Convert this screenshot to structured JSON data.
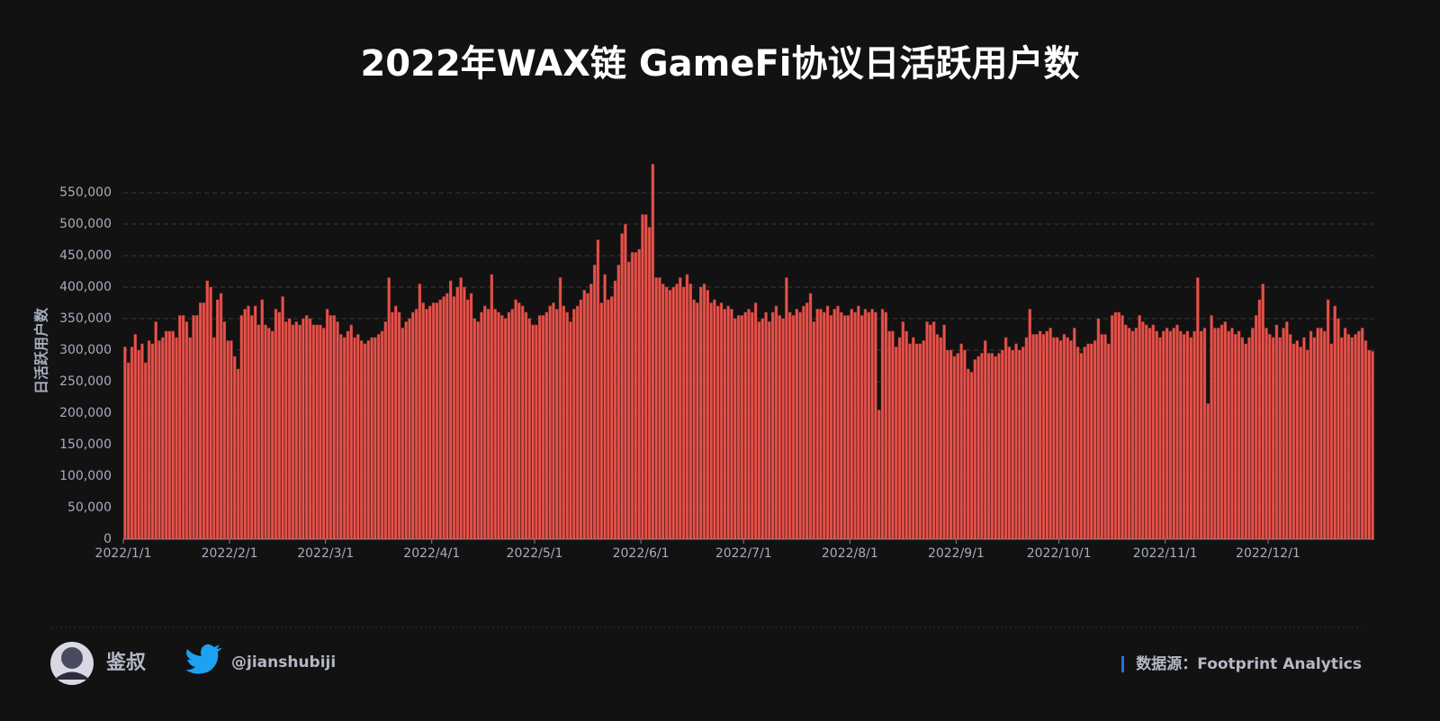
{
  "chart_data": {
    "type": "bar",
    "title": "2022年WAX链 GameFi协议日活跃用户数",
    "y_label": "日活跃用户数",
    "color": "#e5534b",
    "ylim": [
      0,
      600000
    ],
    "yticks": [
      0,
      {
        "value": 50000,
        "label": "50,000"
      },
      {
        "value": 100000,
        "label": "100,000"
      },
      {
        "value": 150000,
        "label": "150,000"
      },
      {
        "value": 200000,
        "label": "200,000"
      },
      {
        "value": 250000,
        "label": "250,000"
      },
      {
        "value": 300000,
        "label": "300,000"
      },
      {
        "value": 350000,
        "label": "350,000"
      },
      {
        "value": 400000,
        "label": "400,000"
      },
      {
        "value": 450000,
        "label": "450,000"
      },
      {
        "value": 500000,
        "label": "500,000"
      },
      {
        "value": 550000,
        "label": "550,000"
      }
    ],
    "grid": true,
    "categories": [
      "2022/1/1",
      null,
      null,
      null,
      null,
      null,
      null,
      null,
      null,
      null,
      null,
      null,
      null,
      null,
      null,
      null,
      null,
      null,
      null,
      null,
      null,
      null,
      null,
      null,
      null,
      null,
      null,
      null,
      null,
      null,
      null,
      "2022/2/1",
      null,
      null,
      null,
      null,
      null,
      null,
      null,
      null,
      null,
      null,
      null,
      null,
      null,
      null,
      null,
      null,
      null,
      null,
      null,
      null,
      null,
      null,
      null,
      null,
      null,
      null,
      null,
      "2022/3/1",
      null,
      null,
      null,
      null,
      null,
      null,
      null,
      null,
      null,
      null,
      null,
      null,
      null,
      null,
      null,
      null,
      null,
      null,
      null,
      null,
      null,
      null,
      null,
      null,
      null,
      null,
      null,
      null,
      null,
      null,
      "2022/4/1",
      null,
      null,
      null,
      null,
      null,
      null,
      null,
      null,
      null,
      null,
      null,
      null,
      null,
      null,
      null,
      null,
      null,
      null,
      null,
      null,
      null,
      null,
      null,
      null,
      null,
      null,
      null,
      null,
      null,
      "2022/5/1",
      null,
      null,
      null,
      null,
      null,
      null,
      null,
      null,
      null,
      null,
      null,
      null,
      null,
      null,
      null,
      null,
      null,
      null,
      null,
      null,
      null,
      null,
      null,
      null,
      null,
      null,
      null,
      null,
      null,
      null,
      "2022/6/1",
      null,
      null,
      null,
      null,
      null,
      null,
      null,
      null,
      null,
      null,
      null,
      null,
      null,
      null,
      null,
      null,
      null,
      null,
      null,
      null,
      null,
      null,
      null,
      null,
      null,
      null,
      null,
      null,
      null,
      "2022/7/1",
      null,
      null,
      null,
      null,
      null,
      null,
      null,
      null,
      null,
      null,
      null,
      null,
      null,
      null,
      null,
      null,
      null,
      null,
      null,
      null,
      null,
      null,
      null,
      null,
      null,
      null,
      null,
      null,
      null,
      null,
      "2022/8/1",
      null,
      null,
      null,
      null,
      null,
      null,
      null,
      null,
      null,
      null,
      null,
      null,
      null,
      null,
      null,
      null,
      null,
      null,
      null,
      null,
      null,
      null,
      null,
      null,
      null,
      null,
      null,
      null,
      null,
      null,
      "2022/9/1",
      null,
      null,
      null,
      null,
      null,
      null,
      null,
      null,
      null,
      null,
      null,
      null,
      null,
      null,
      null,
      null,
      null,
      null,
      null,
      null,
      null,
      null,
      null,
      null,
      null,
      null,
      null,
      null,
      null,
      "2022/10/1",
      null,
      null,
      null,
      null,
      null,
      null,
      null,
      null,
      null,
      null,
      null,
      null,
      null,
      null,
      null,
      null,
      null,
      null,
      null,
      null,
      null,
      null,
      null,
      null,
      null,
      null,
      null,
      null,
      null,
      null,
      "2022/11/1",
      null,
      null,
      null,
      null,
      null,
      null,
      null,
      null,
      null,
      null,
      null,
      null,
      null,
      null,
      null,
      null,
      null,
      null,
      null,
      null,
      null,
      null,
      null,
      null,
      null,
      null,
      null,
      null,
      null,
      "2022/12/1",
      null,
      null,
      null,
      null,
      null,
      null,
      null,
      null,
      null,
      null,
      null,
      null,
      null,
      null,
      null,
      null,
      null,
      null,
      null,
      null,
      null,
      null,
      null,
      null,
      null,
      null,
      null,
      null,
      null,
      null
    ],
    "values": [
      305000,
      280000,
      305000,
      325000,
      300000,
      310000,
      280000,
      315000,
      310000,
      345000,
      315000,
      320000,
      330000,
      330000,
      330000,
      320000,
      355000,
      355000,
      345000,
      320000,
      355000,
      355000,
      375000,
      375000,
      410000,
      400000,
      320000,
      380000,
      390000,
      345000,
      315000,
      315000,
      290000,
      270000,
      355000,
      365000,
      370000,
      355000,
      370000,
      340000,
      380000,
      340000,
      335000,
      330000,
      365000,
      360000,
      385000,
      345000,
      350000,
      340000,
      345000,
      340000,
      350000,
      355000,
      350000,
      340000,
      340000,
      340000,
      335000,
      365000,
      355000,
      355000,
      345000,
      325000,
      320000,
      330000,
      340000,
      320000,
      325000,
      315000,
      310000,
      315000,
      320000,
      320000,
      325000,
      330000,
      345000,
      415000,
      360000,
      370000,
      360000,
      335000,
      345000,
      350000,
      360000,
      365000,
      405000,
      375000,
      365000,
      370000,
      375000,
      375000,
      380000,
      385000,
      390000,
      410000,
      385000,
      400000,
      415000,
      400000,
      380000,
      390000,
      350000,
      345000,
      360000,
      370000,
      365000,
      420000,
      365000,
      360000,
      355000,
      350000,
      360000,
      365000,
      380000,
      375000,
      370000,
      360000,
      350000,
      340000,
      340000,
      355000,
      355000,
      360000,
      370000,
      375000,
      365000,
      415000,
      370000,
      360000,
      345000,
      365000,
      370000,
      380000,
      395000,
      390000,
      405000,
      435000,
      475000,
      375000,
      420000,
      380000,
      385000,
      410000,
      435000,
      485000,
      500000,
      440000,
      455000,
      455000,
      460000,
      515000,
      515000,
      495000,
      595000,
      415000,
      415000,
      405000,
      400000,
      395000,
      400000,
      405000,
      415000,
      400000,
      420000,
      405000,
      380000,
      375000,
      400000,
      405000,
      395000,
      375000,
      380000,
      370000,
      375000,
      365000,
      370000,
      365000,
      350000,
      355000,
      355000,
      360000,
      365000,
      360000,
      375000,
      345000,
      350000,
      360000,
      345000,
      360000,
      370000,
      355000,
      350000,
      415000,
      360000,
      355000,
      365000,
      360000,
      370000,
      375000,
      390000,
      345000,
      365000,
      365000,
      360000,
      370000,
      355000,
      365000,
      370000,
      360000,
      355000,
      355000,
      365000,
      360000,
      370000,
      355000,
      365000,
      360000,
      365000,
      360000,
      205000,
      365000,
      360000,
      330000,
      330000,
      305000,
      320000,
      345000,
      330000,
      310000,
      320000,
      310000,
      310000,
      315000,
      345000,
      340000,
      345000,
      325000,
      320000,
      340000,
      300000,
      300000,
      290000,
      295000,
      310000,
      300000,
      270000,
      265000,
      285000,
      290000,
      295000,
      315000,
      295000,
      295000,
      290000,
      295000,
      300000,
      320000,
      305000,
      300000,
      310000,
      300000,
      305000,
      320000,
      365000,
      325000,
      325000,
      330000,
      325000,
      330000,
      335000,
      320000,
      320000,
      315000,
      325000,
      320000,
      315000,
      335000,
      305000,
      295000,
      305000,
      310000,
      310000,
      315000,
      350000,
      325000,
      325000,
      310000,
      355000,
      360000,
      360000,
      355000,
      340000,
      335000,
      330000,
      335000,
      355000,
      345000,
      340000,
      335000,
      340000,
      330000,
      320000,
      330000,
      335000,
      330000,
      335000,
      340000,
      330000,
      325000,
      330000,
      320000,
      330000,
      415000,
      330000,
      335000,
      215000,
      355000,
      335000,
      335000,
      340000,
      345000,
      330000,
      335000,
      325000,
      330000,
      320000,
      310000,
      320000,
      335000,
      355000,
      380000,
      405000,
      335000,
      325000,
      320000,
      340000,
      320000,
      335000,
      345000,
      325000,
      310000,
      315000,
      305000,
      320000,
      300000,
      330000,
      320000,
      335000,
      335000,
      330000,
      380000,
      310000,
      370000,
      350000,
      320000,
      335000,
      325000,
      320000,
      325000,
      330000,
      335000,
      315000,
      300000,
      298000
    ]
  },
  "footer": {
    "author": "鉴叔",
    "handle": "@jianshubiji",
    "source": "数据源：Footprint Analytics"
  }
}
